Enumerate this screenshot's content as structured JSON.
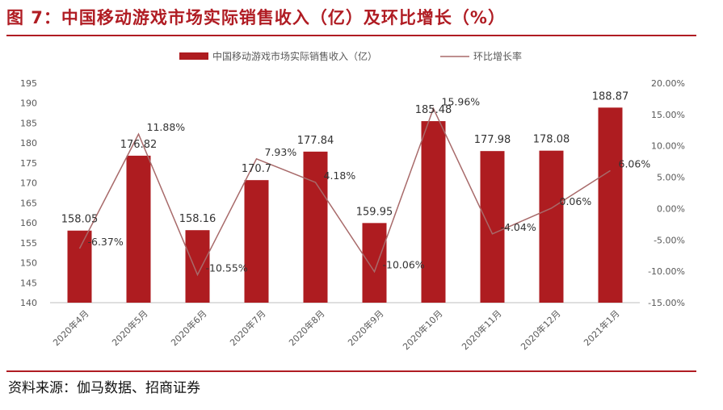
{
  "header": {
    "title": "图 7：中国移动游戏市场实际销售收入（亿）及环比增长（%）"
  },
  "footer": {
    "source": "资料来源：伽马数据、招商证券"
  },
  "colors": {
    "bar": "#ae1c20",
    "line": "#a86a6a",
    "accent": "#b01c23",
    "axis_text": "#595959"
  },
  "chart_data": {
    "type": "bar",
    "title": "图 7：中国移动游戏市场实际销售收入（亿）及环比增长（%）",
    "categories": [
      "2020年4月",
      "2020年5月",
      "2020年6月",
      "2020年7月",
      "2020年8月",
      "2020年9月",
      "2020年10月",
      "2020年11月",
      "2020年12月",
      "2021年1月"
    ],
    "series": [
      {
        "name": "中国移动游戏市场实际销售收入（亿）",
        "type": "bar",
        "axis": "left",
        "values": [
          158.05,
          176.82,
          158.16,
          170.7,
          177.84,
          159.95,
          185.48,
          177.98,
          178.08,
          188.87
        ],
        "labels": [
          "158.05",
          "176.82",
          "158.16",
          "170.7",
          "177.84",
          "159.95",
          "185.48",
          "177.98",
          "178.08",
          "188.87"
        ]
      },
      {
        "name": "环比增长率",
        "type": "line",
        "axis": "right",
        "values": [
          -6.37,
          11.88,
          -10.55,
          7.93,
          4.18,
          -10.06,
          15.96,
          -4.04,
          0.06,
          6.06
        ],
        "labels": [
          "-6.37%",
          "11.88%",
          "-10.55%",
          "7.93%",
          "4.18%",
          "-10.06%",
          "15.96%",
          "-4.04%",
          "0.06%",
          "6.06%"
        ]
      }
    ],
    "y_left": {
      "ylim": [
        140,
        195
      ],
      "ticks": [
        "140",
        "145",
        "150",
        "155",
        "160",
        "165",
        "170",
        "175",
        "180",
        "185",
        "190",
        "195"
      ]
    },
    "y_right": {
      "ylim": [
        -15,
        20
      ],
      "ticks": [
        "-15.00%",
        "-10.00%",
        "-5.00%",
        "0.00%",
        "5.00%",
        "10.00%",
        "15.00%",
        "20.00%"
      ]
    },
    "legend": {
      "position": "top-center",
      "entries": [
        "中国移动游戏市场实际销售收入（亿）",
        "环比增长率"
      ]
    },
    "grid": false
  }
}
